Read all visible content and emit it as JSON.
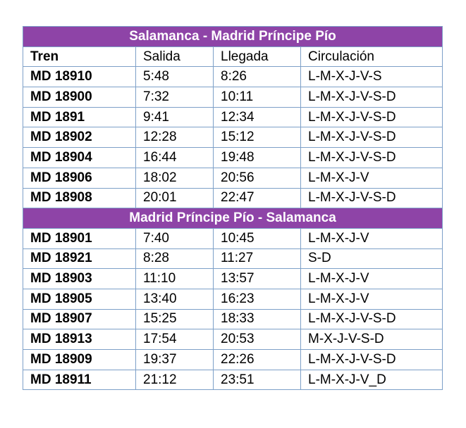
{
  "columns": [
    "Tren",
    "Salida",
    "Llegada",
    "Circulación"
  ],
  "sections": [
    {
      "title": "Salamanca - Madrid Príncipe Pío",
      "rows": [
        [
          "MD 18910",
          "5:48",
          "8:26",
          "L-M-X-J-V-S"
        ],
        [
          "MD 18900",
          "7:32",
          "10:11",
          "L-M-X-J-V-S-D"
        ],
        [
          "MD 1891",
          "9:41",
          "12:34",
          "L-M-X-J-V-S-D"
        ],
        [
          "MD 18902",
          "12:28",
          "15:12",
          "L-M-X-J-V-S-D"
        ],
        [
          "MD 18904",
          "16:44",
          "19:48",
          "L-M-X-J-V-S-D"
        ],
        [
          "MD 18906",
          "18:02",
          "20:56",
          "L-M-X-J-V"
        ],
        [
          "MD 18908",
          "20:01",
          "22:47",
          "L-M-X-J-V-S-D"
        ]
      ]
    },
    {
      "title": "Madrid Príncipe Pío - Salamanca",
      "rows": [
        [
          "MD 18901",
          "7:40",
          "10:45",
          "L-M-X-J-V"
        ],
        [
          "MD 18921",
          "8:28",
          "11:27",
          "S-D"
        ],
        [
          "MD 18903",
          "11:10",
          "13:57",
          "L-M-X-J-V"
        ],
        [
          "MD 18905",
          "13:40",
          "16:23",
          "L-M-X-J-V"
        ],
        [
          "MD 18907",
          "15:25",
          "18:33",
          "L-M-X-J-V-S-D"
        ],
        [
          "MD 18913",
          "17:54",
          "20:53",
          "M-X-J-V-S-D"
        ],
        [
          "MD 18909",
          "19:37",
          "22:26",
          "L-M-X-J-V-S-D"
        ],
        [
          "MD 18911",
          "21:12",
          "23:51",
          "L-M-X-J-V_D"
        ]
      ]
    }
  ],
  "colors": {
    "section_header_bg": "#8e44a7",
    "section_header_text": "#ffffff",
    "border": "#7da0c8"
  }
}
